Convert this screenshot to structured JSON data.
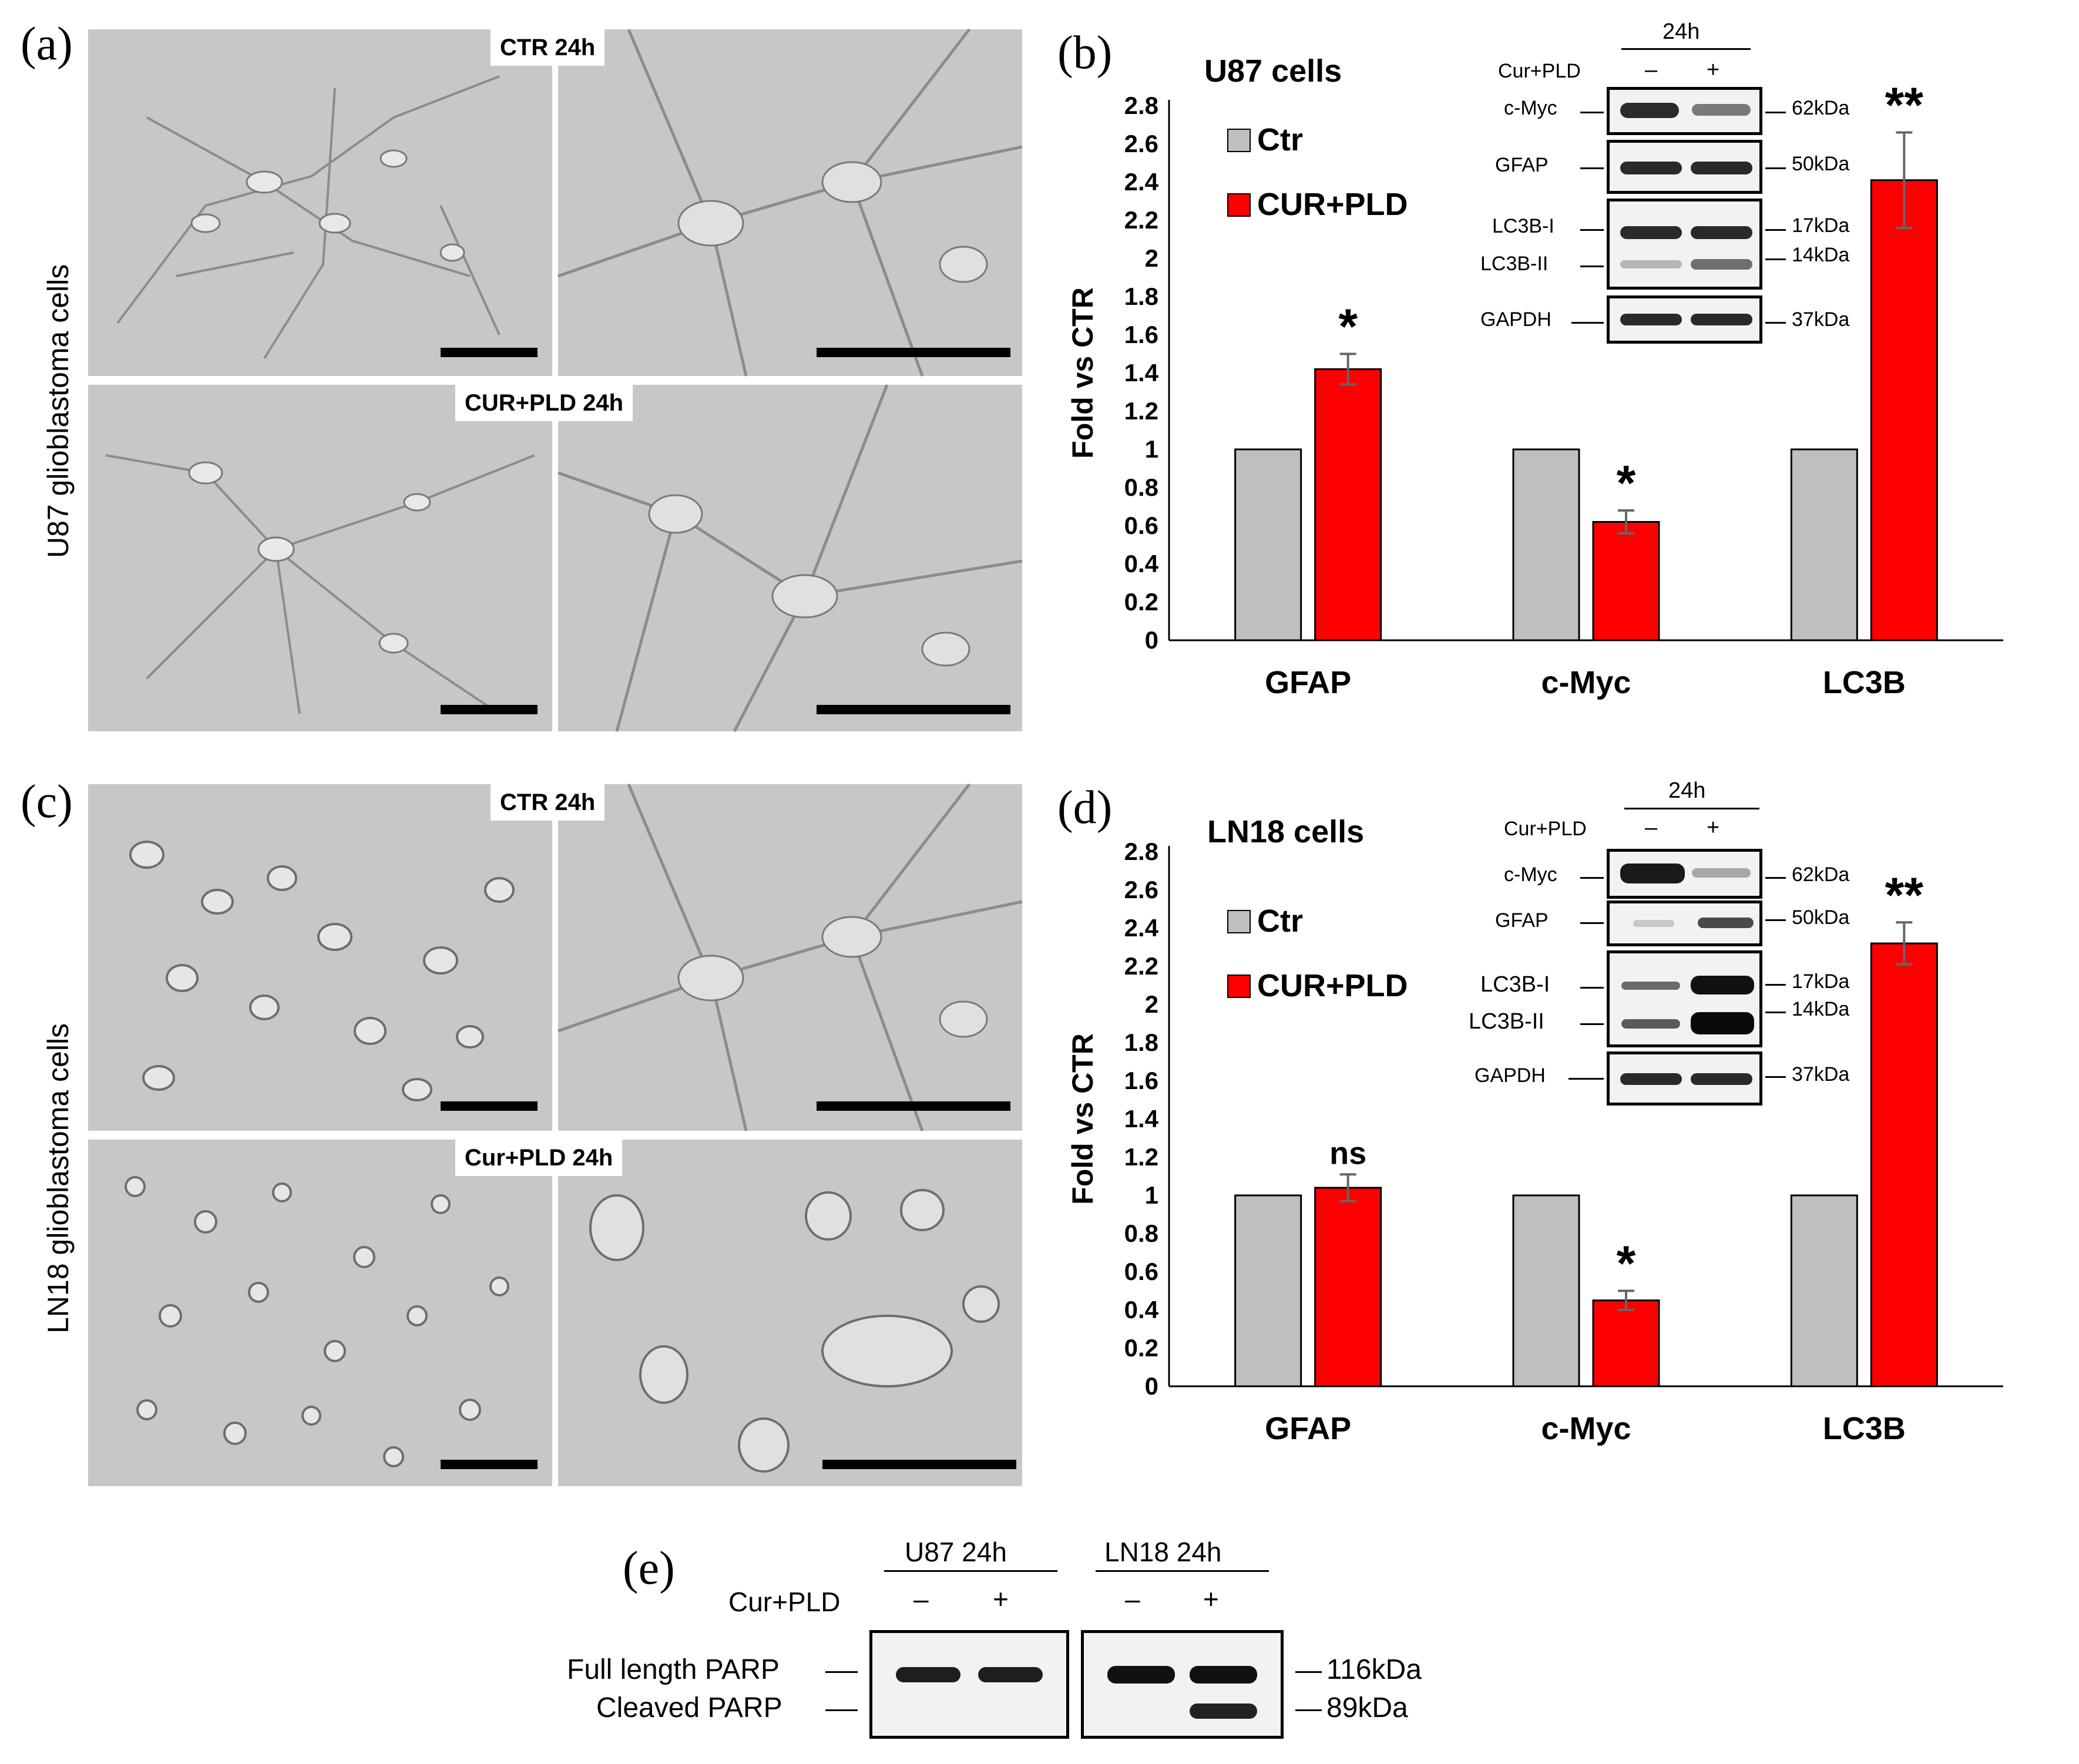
{
  "panels": {
    "a": {
      "label": "(a)",
      "row_label": "U87 glioblastoma  cells",
      "top_tag": "CTR 24h",
      "bottom_tag": "CUR+PLD 24h"
    },
    "b": {
      "label": "(b)",
      "title": "U87 cells"
    },
    "c": {
      "label": "(c)",
      "row_label": "LN18 glioblastoma  cells",
      "top_tag": "CTR 24h",
      "bottom_tag": "Cur+PLD 24h"
    },
    "d": {
      "label": "(d)",
      "title": "LN18 cells"
    },
    "e": {
      "label": "(e)"
    }
  },
  "chart_data": [
    {
      "type": "bar",
      "title": "U87 cells",
      "ylabel": "Fold vs CTR",
      "categories": [
        "GFAP",
        "c-Myc",
        "LC3B"
      ],
      "series": [
        {
          "name": "Ctr",
          "values": [
            1,
            1,
            1
          ],
          "color": "#bfbfbf"
        },
        {
          "name": "CUR+PLD",
          "values": [
            1.42,
            0.62,
            2.41
          ],
          "errors": [
            0.08,
            0.06,
            0.25
          ],
          "color": "#ff0000"
        }
      ],
      "annotations": [
        "*",
        "*",
        "**"
      ],
      "ylim": [
        0,
        2.8
      ],
      "yticks": [
        "0",
        "0.2",
        "0.4",
        "0.6",
        "0.8",
        "1",
        "1.2",
        "1.4",
        "1.6",
        "1.8",
        "2",
        "2.2",
        "2.4",
        "2.6",
        "2.8"
      ],
      "legend": "top-left",
      "grid": false
    },
    {
      "type": "bar",
      "title": "LN18 cells",
      "ylabel": "Fold vs CTR",
      "categories": [
        "GFAP",
        "c-Myc",
        "LC3B"
      ],
      "series": [
        {
          "name": "Ctr",
          "values": [
            1,
            1,
            1
          ],
          "color": "#bfbfbf"
        },
        {
          "name": "CUR+PLD",
          "values": [
            1.04,
            0.45,
            2.32
          ],
          "errors": [
            0.07,
            0.05,
            0.11
          ],
          "color": "#ff0000"
        }
      ],
      "annotations": [
        "ns",
        "*",
        "**"
      ],
      "ylim": [
        0,
        2.8
      ],
      "yticks": [
        "0",
        "0.2",
        "0.4",
        "0.6",
        "0.8",
        "1",
        "1.2",
        "1.4",
        "1.6",
        "1.8",
        "2",
        "2.2",
        "2.4",
        "2.6",
        "2.8"
      ],
      "legend": "top-left",
      "grid": false
    }
  ],
  "blot_b": {
    "time": "24h",
    "treatment": "Cur+PLD",
    "minus": "–",
    "plus": "+",
    "rows": [
      {
        "label": "c-Myc",
        "kda": "62kDa"
      },
      {
        "label": "GFAP",
        "kda": "50kDa"
      },
      {
        "label": "LC3B-I",
        "kda": "17kDa"
      },
      {
        "label": "LC3B-II",
        "kda": "14kDa"
      },
      {
        "label": "GAPDH",
        "kda": "37kDa"
      }
    ]
  },
  "blot_d": {
    "time": "24h",
    "treatment": "Cur+PLD",
    "minus": "–",
    "plus": "+",
    "rows": [
      {
        "label": "c-Myc",
        "kda": "62kDa"
      },
      {
        "label": "GFAP",
        "kda": "50kDa"
      },
      {
        "label": "LC3B-I",
        "kda": "17kDa"
      },
      {
        "label": "LC3B-II",
        "kda": "14kDa"
      },
      {
        "label": "GAPDH",
        "kda": "37kDa"
      }
    ]
  },
  "blot_e": {
    "group1": "U87 24h",
    "group2": "LN18 24h",
    "treatment": "Cur+PLD",
    "minus": "–",
    "plus": "+",
    "rows": [
      {
        "label": "Full length PARP",
        "kda": "116kDa"
      },
      {
        "label": "Cleaved PARP",
        "kda": "89kDa"
      }
    ]
  }
}
